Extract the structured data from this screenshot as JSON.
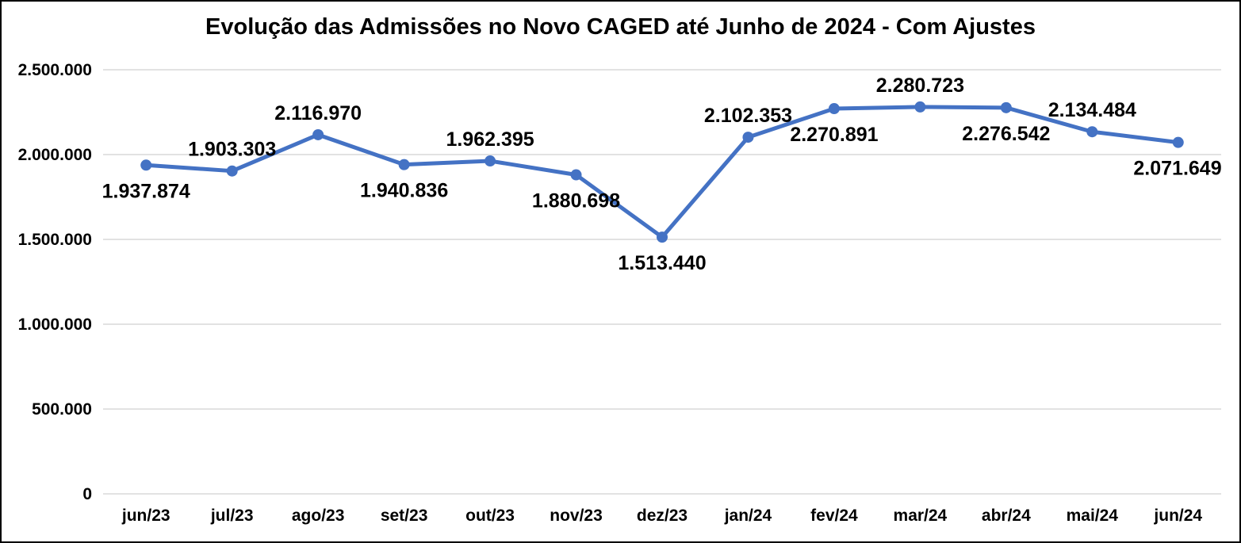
{
  "chart_data": {
    "type": "line",
    "title": "Evolução das Admissões no Novo CAGED até Junho de 2024 - Com Ajustes",
    "categories": [
      "jun/23",
      "jul/23",
      "ago/23",
      "set/23",
      "out/23",
      "nov/23",
      "dez/23",
      "jan/24",
      "fev/24",
      "mar/24",
      "abr/24",
      "mai/24",
      "jun/24"
    ],
    "values": [
      1937874,
      1903303,
      2116970,
      1940836,
      1962395,
      1880698,
      1513440,
      2102353,
      2270891,
      2280723,
      2276542,
      2134484,
      2071649
    ],
    "labels": [
      "1.937.874",
      "1.903.303",
      "2.116.970",
      "1.940.836",
      "1.962.395",
      "1.880.698",
      "1.513.440",
      "2.102.353",
      "2.270.891",
      "2.280.723",
      "2.276.542",
      "2.134.484",
      "2.071.649"
    ],
    "label_positions": [
      "below",
      "above",
      "above",
      "below",
      "above",
      "below",
      "below",
      "above",
      "below",
      "above",
      "below",
      "above",
      "below"
    ],
    "xlabel": "",
    "ylabel": "",
    "ylim": [
      0,
      2500000
    ],
    "yticks": [
      0,
      500000,
      1000000,
      1500000,
      2000000,
      2500000
    ],
    "ytick_labels": [
      "0",
      "500.000",
      "1.000.000",
      "1.500.000",
      "2.000.000",
      "2.500.000"
    ],
    "grid": true,
    "legend": "none",
    "line_color": "#4472C4",
    "marker_color": "#4472C4",
    "gridline_color": "#d9d9d9",
    "text_color": "#000000"
  }
}
